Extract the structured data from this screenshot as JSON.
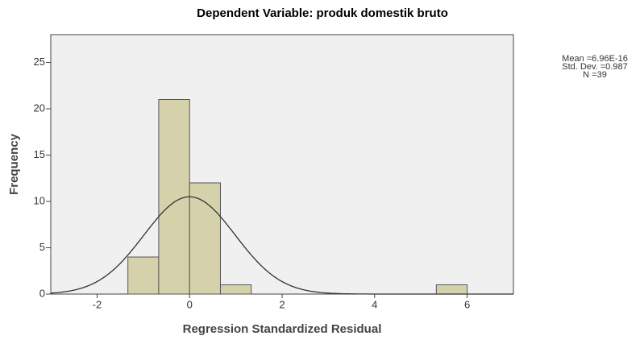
{
  "chart_data": {
    "type": "histogram",
    "title": "Dependent Variable: produk domestik bruto",
    "xlabel": "Regression Standardized Residual",
    "ylabel": "Frequency",
    "bins": [
      -1.333,
      -0.667,
      0,
      0.667,
      1.333,
      2,
      2.667,
      3.333,
      4,
      4.667,
      5.333,
      6
    ],
    "values": [
      4,
      21,
      12,
      1,
      0,
      0,
      0,
      0,
      0,
      0,
      1
    ],
    "color": "#d5d2ab",
    "xlim": [
      -3,
      7
    ],
    "xticks": [
      -2,
      0,
      2,
      4,
      6
    ],
    "ylim": [
      0,
      28
    ],
    "yticks": [
      0,
      5,
      10,
      15,
      20,
      25
    ],
    "normal_curve": {
      "mean": 6.96e-16,
      "sd": 0.987,
      "n": 39
    },
    "annotations": [
      "Mean =6.96E-16",
      "Std. Dev. =0.987",
      "N =39"
    ]
  }
}
